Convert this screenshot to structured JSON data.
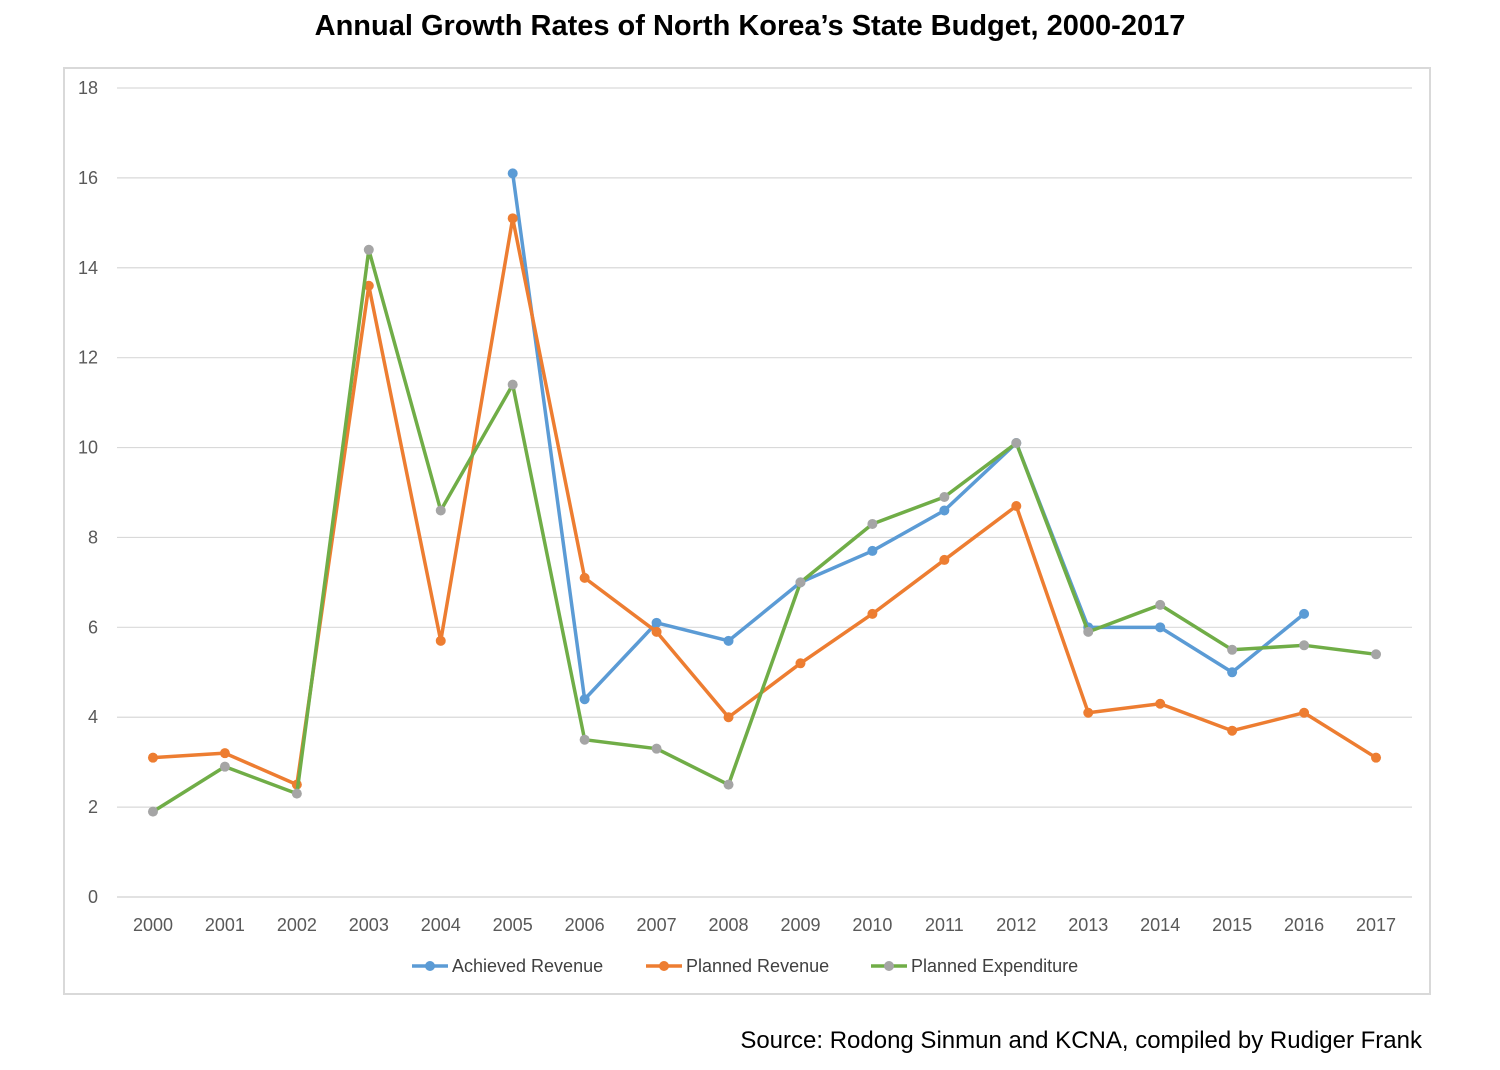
{
  "title": "Annual Growth Rates of North Korea’s State Budget, 2000-2017",
  "source": "Source: Rodong Sinmun and KCNA, compiled by Rudiger Frank",
  "chart_data": {
    "type": "line",
    "title": "Annual Growth Rates of North Korea’s State Budget, 2000-2017",
    "xlabel": "",
    "ylabel": "",
    "ylim": [
      0,
      18
    ],
    "yticks": [
      0,
      2,
      4,
      6,
      8,
      10,
      12,
      14,
      16,
      18
    ],
    "grid": true,
    "legend_position": "bottom",
    "categories": [
      "2000",
      "2001",
      "2002",
      "2003",
      "2004",
      "2005",
      "2006",
      "2007",
      "2008",
      "2009",
      "2010",
      "2011",
      "2012",
      "2013",
      "2014",
      "2015",
      "2016",
      "2017"
    ],
    "series": [
      {
        "name": "Achieved Revenue",
        "color": "#5b9bd5",
        "values": [
          null,
          null,
          null,
          null,
          null,
          16.1,
          4.4,
          6.1,
          5.7,
          7.0,
          7.7,
          8.6,
          10.1,
          6.0,
          6.0,
          5.0,
          6.3,
          null
        ]
      },
      {
        "name": "Planned Revenue",
        "color": "#ed7d31",
        "values": [
          3.1,
          3.2,
          2.5,
          13.6,
          5.7,
          15.1,
          7.1,
          5.9,
          4.0,
          5.2,
          6.3,
          7.5,
          8.7,
          4.1,
          4.3,
          3.7,
          4.1,
          3.1
        ]
      },
      {
        "name": "Planned Expenditure",
        "color": "#70ad47",
        "marker_color": "#a5a5a5",
        "values": [
          1.9,
          2.9,
          2.3,
          14.4,
          8.6,
          11.4,
          3.5,
          3.3,
          2.5,
          7.0,
          8.3,
          8.9,
          10.1,
          5.9,
          6.5,
          5.5,
          5.6,
          5.4
        ]
      }
    ]
  }
}
